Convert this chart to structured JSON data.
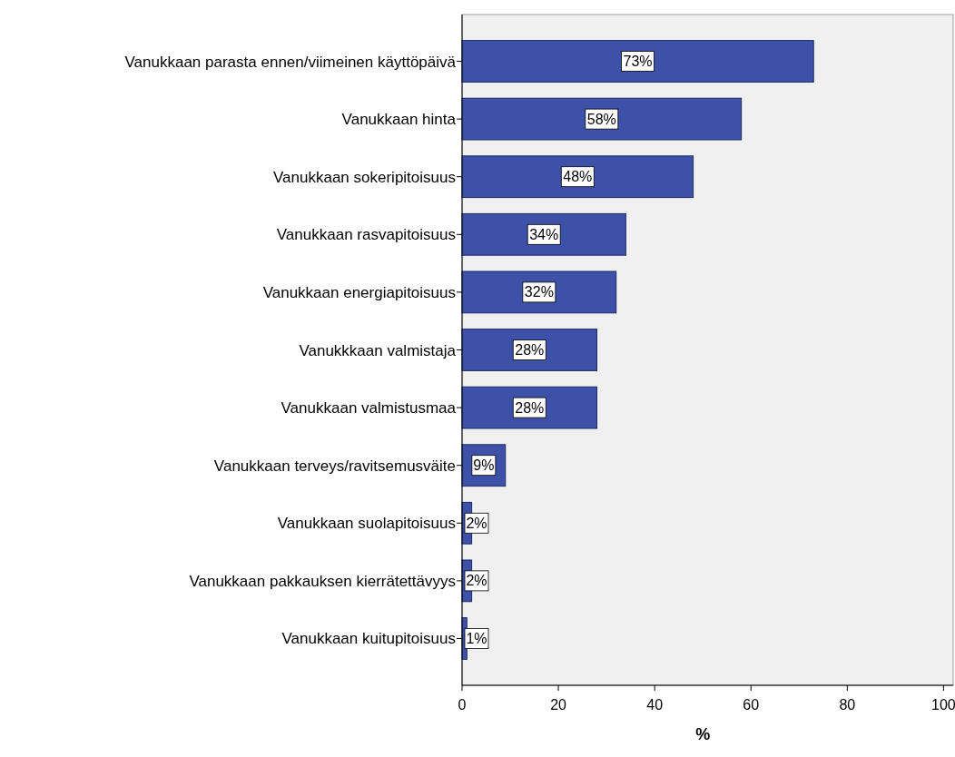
{
  "chart_data": {
    "type": "bar",
    "orientation": "horizontal",
    "xlabel": "%",
    "categories": [
      "Vanukkaan parasta ennen/viimeinen käyttöpäivä",
      "Vanukkaan hinta",
      "Vanukkaan sokeripitoisuus",
      "Vanukkaan rasvapitoisuus",
      "Vanukkaan energiapitoisuus",
      "Vanukkkaan valmistaja",
      "Vanukkaan valmistusmaa",
      "Vanukkaan terveys/ravitsemusväite",
      "Vanukkaan suolapitoisuus",
      "Vanukkaan pakkauksen kierrätettävyys",
      "Vanukkaan kuitupitoisuus"
    ],
    "values": [
      73,
      58,
      48,
      34,
      32,
      28,
      28,
      9,
      2,
      2,
      1
    ],
    "value_labels": [
      "73%",
      "58%",
      "48%",
      "34%",
      "32%",
      "28%",
      "28%",
      "9%",
      "2%",
      "2%",
      "1%"
    ],
    "color": "#3d51a8",
    "xlim": [
      0,
      102
    ],
    "xticks": [
      0,
      20,
      40,
      60,
      80,
      100
    ],
    "grid": false
  }
}
